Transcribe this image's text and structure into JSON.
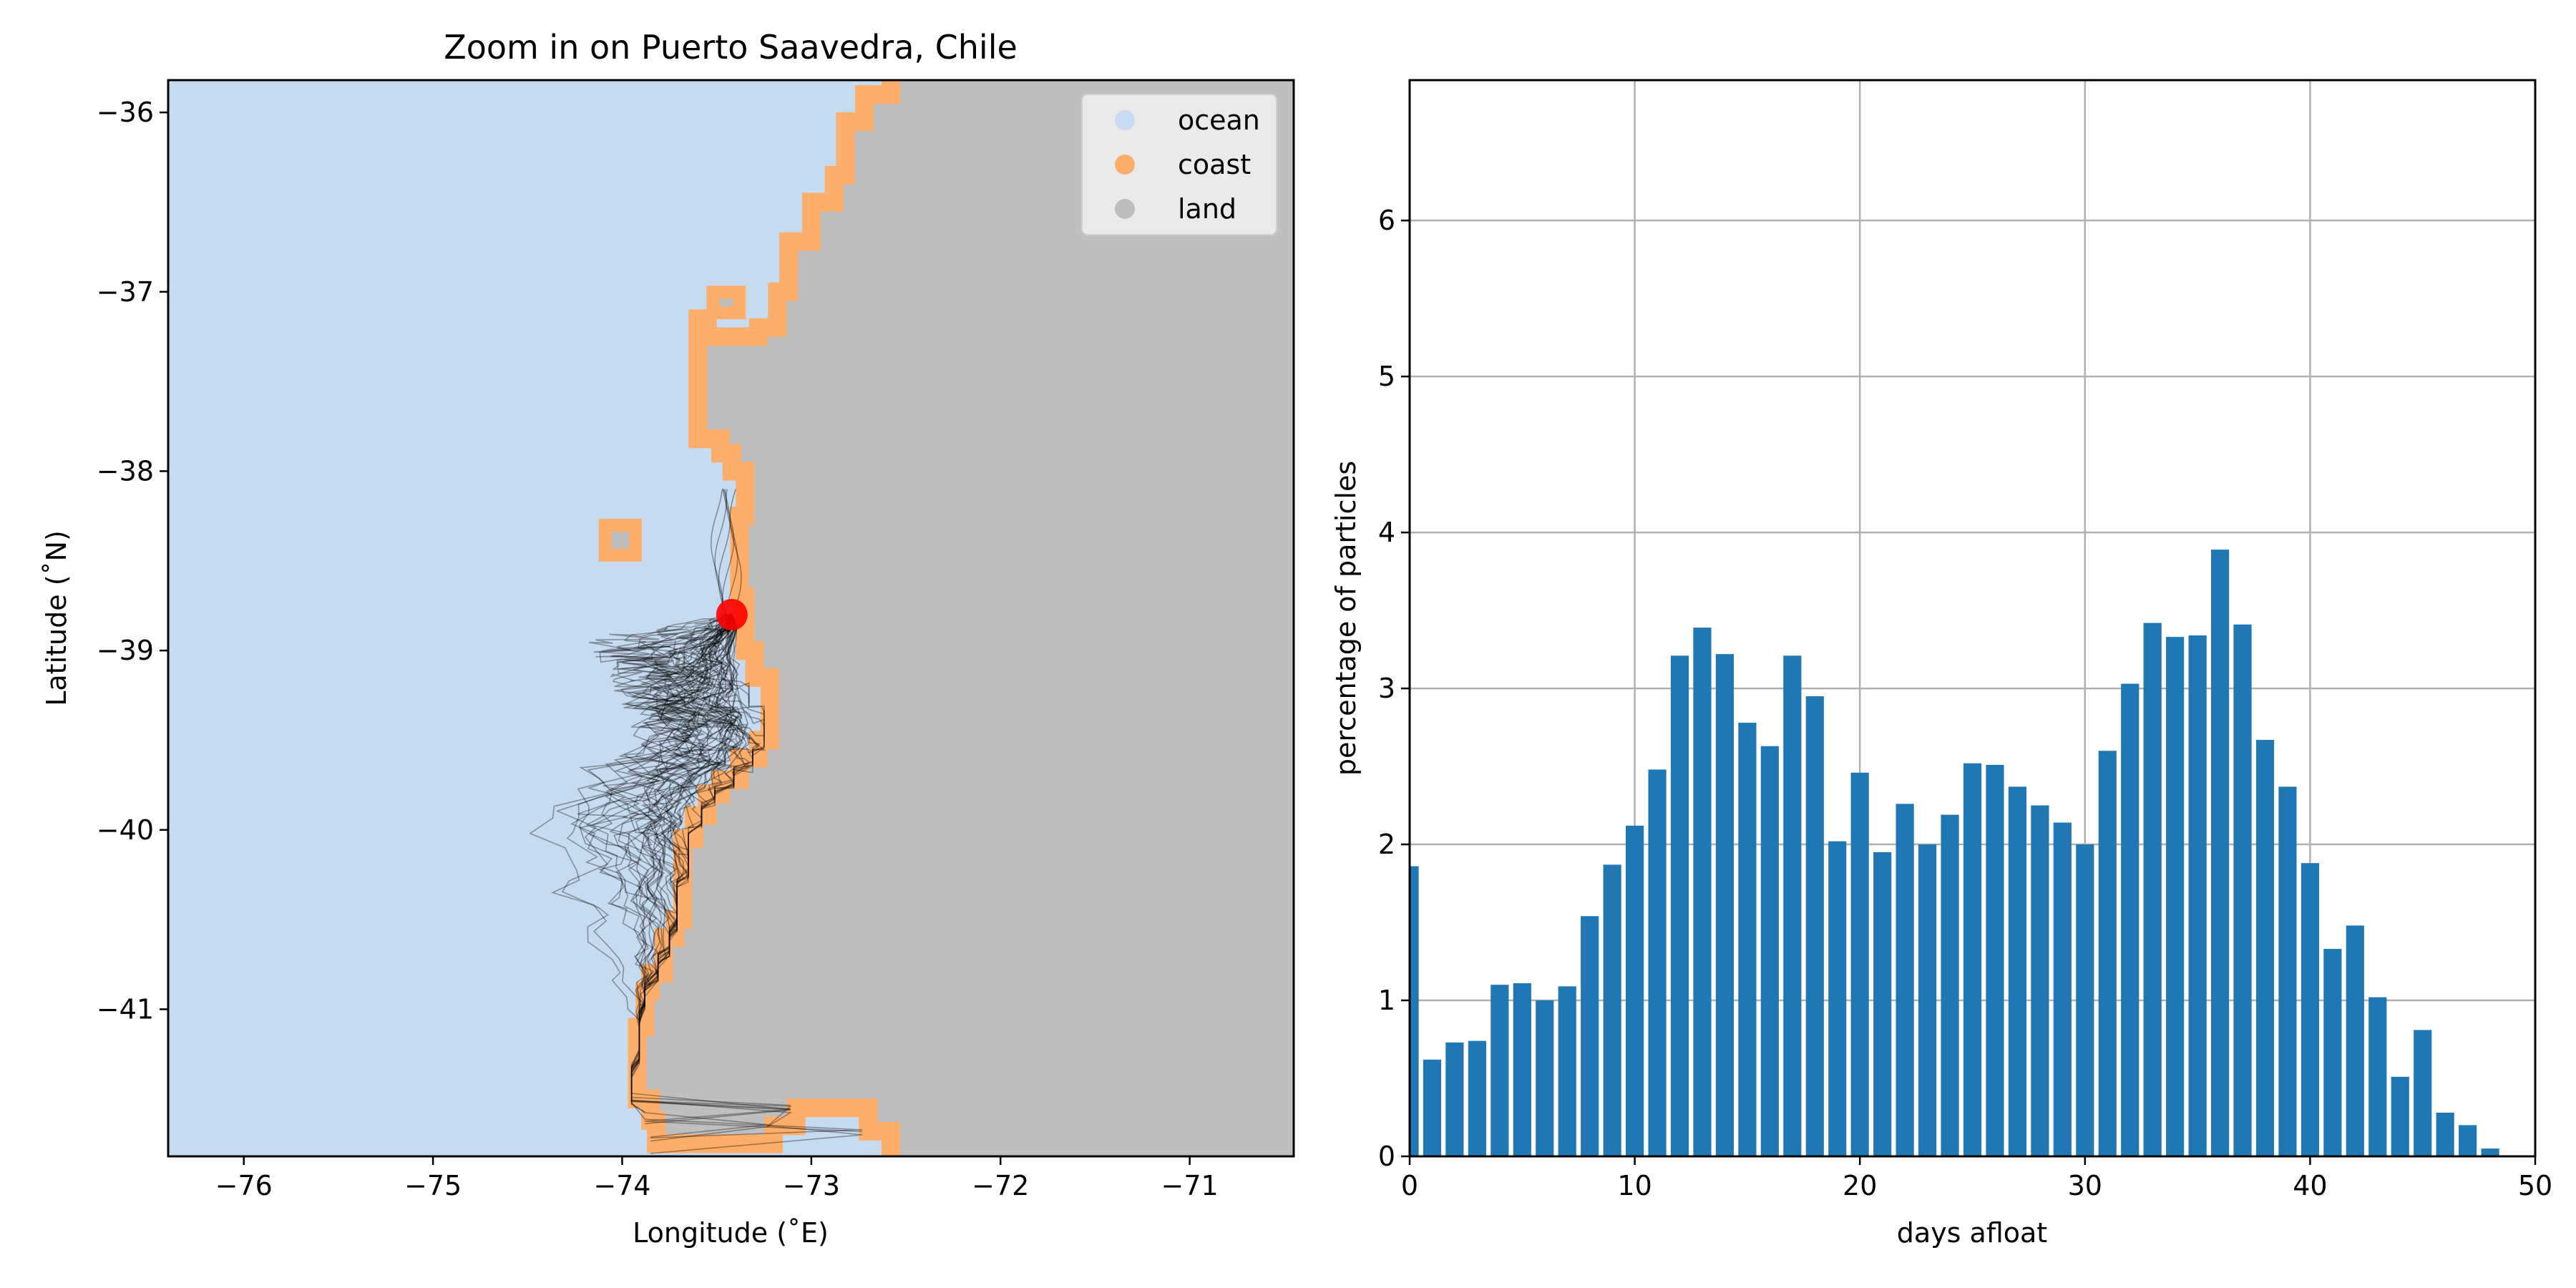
{
  "colors": {
    "ocean": "#c6dbef",
    "coast": "#fdae6b",
    "land": "#bdbdbd",
    "release": "#ff0000",
    "trajectory": "#000000",
    "bar": "#1f77b4",
    "grid": "#b0b0b0"
  },
  "chart_data": [
    {
      "type": "map",
      "title": "Zoom in on Puerto Saavedra, Chile",
      "xlabel": "Longitude (˚E)",
      "ylabel": "Latitude (˚N)",
      "xlim": [
        -76.4,
        -70.45
      ],
      "ylim": [
        -41.82,
        -35.82
      ],
      "xticks": [
        -76,
        -75,
        -74,
        -73,
        -72,
        -71
      ],
      "yticks": [
        -36,
        -37,
        -38,
        -39,
        -40,
        -41
      ],
      "xtick_labels": [
        "−76",
        "−75",
        "−74",
        "−73",
        "−72",
        "−71"
      ],
      "ytick_labels": [
        "−36",
        "−37",
        "−38",
        "−39",
        "−40",
        "−41"
      ],
      "legend": {
        "placement": "top-right",
        "entries": [
          {
            "label": "ocean",
            "color": "#c6dbef"
          },
          {
            "label": "coast",
            "color": "#fdae6b"
          },
          {
            "label": "land",
            "color": "#bdbdbd"
          }
        ]
      },
      "release_point": {
        "lon": -73.42,
        "lat": -38.8
      },
      "coastline": [
        [
          -72.58,
          -35.82
        ],
        [
          -72.58,
          -35.9
        ],
        [
          -72.72,
          -35.9
        ],
        [
          -72.72,
          -36.05
        ],
        [
          -72.82,
          -36.05
        ],
        [
          -72.82,
          -36.35
        ],
        [
          -72.88,
          -36.35
        ],
        [
          -72.88,
          -36.5
        ],
        [
          -73.0,
          -36.5
        ],
        [
          -73.0,
          -36.72
        ],
        [
          -73.12,
          -36.72
        ],
        [
          -73.12,
          -37.0
        ],
        [
          -73.18,
          -37.0
        ],
        [
          -73.18,
          -37.2
        ],
        [
          -73.28,
          -37.2
        ],
        [
          -73.28,
          -37.25
        ],
        [
          -73.55,
          -37.25
        ],
        [
          -73.55,
          -37.15
        ],
        [
          -73.6,
          -37.15
        ],
        [
          -73.6,
          -37.82
        ],
        [
          -73.48,
          -37.82
        ],
        [
          -73.48,
          -37.9
        ],
        [
          -73.42,
          -37.9
        ],
        [
          -73.42,
          -38.0
        ],
        [
          -73.35,
          -38.0
        ],
        [
          -73.35,
          -38.25
        ],
        [
          -73.38,
          -38.25
        ],
        [
          -73.38,
          -38.7
        ],
        [
          -73.35,
          -38.7
        ],
        [
          -73.35,
          -39.0
        ],
        [
          -73.3,
          -39.0
        ],
        [
          -73.3,
          -39.15
        ],
        [
          -73.22,
          -39.15
        ],
        [
          -73.22,
          -39.5
        ],
        [
          -73.28,
          -39.5
        ],
        [
          -73.28,
          -39.6
        ],
        [
          -73.38,
          -39.6
        ],
        [
          -73.38,
          -39.72
        ],
        [
          -73.48,
          -39.72
        ],
        [
          -73.48,
          -39.8
        ],
        [
          -73.55,
          -39.8
        ],
        [
          -73.55,
          -39.92
        ],
        [
          -73.62,
          -39.92
        ],
        [
          -73.62,
          -40.05
        ],
        [
          -73.68,
          -40.05
        ],
        [
          -73.68,
          -40.5
        ],
        [
          -73.72,
          -40.5
        ],
        [
          -73.72,
          -40.6
        ],
        [
          -73.78,
          -40.6
        ],
        [
          -73.78,
          -40.8
        ],
        [
          -73.85,
          -40.8
        ],
        [
          -73.85,
          -40.9
        ],
        [
          -73.88,
          -40.9
        ],
        [
          -73.88,
          -41.1
        ],
        [
          -73.92,
          -41.1
        ],
        [
          -73.92,
          -41.5
        ],
        [
          -73.85,
          -41.5
        ],
        [
          -73.85,
          -41.62
        ],
        [
          -73.82,
          -41.62
        ],
        [
          -73.82,
          -41.75
        ],
        [
          -73.2,
          -41.75
        ],
        [
          -73.2,
          -41.65
        ],
        [
          -73.08,
          -41.65
        ],
        [
          -73.08,
          -41.55
        ],
        [
          -72.7,
          -41.55
        ],
        [
          -72.7,
          -41.68
        ],
        [
          -72.58,
          -41.68
        ],
        [
          -72.58,
          -41.82
        ]
      ],
      "coastal_islands": [
        {
          "lon": [
            -73.55,
            -73.35
          ],
          "lat": [
            -37.15,
            -36.97
          ]
        },
        {
          "lon": [
            -74.12,
            -73.9
          ],
          "lat": [
            -38.5,
            -38.27
          ]
        }
      ]
    },
    {
      "type": "bar",
      "title": "",
      "xlabel": "days afloat",
      "ylabel": "percentage of particles",
      "xlim": [
        0,
        50
      ],
      "ylim": [
        0,
        6.9
      ],
      "xticks": [
        0,
        10,
        20,
        30,
        40,
        50
      ],
      "yticks": [
        0,
        1,
        2,
        3,
        4,
        5,
        6
      ],
      "grid": true,
      "bar_width": 0.8,
      "x": [
        0,
        1,
        2,
        3,
        4,
        5,
        6,
        7,
        8,
        9,
        10,
        11,
        12,
        13,
        14,
        15,
        16,
        17,
        18,
        19,
        20,
        21,
        22,
        23,
        24,
        25,
        26,
        27,
        28,
        29,
        30,
        31,
        32,
        33,
        34,
        35,
        36,
        37,
        38,
        39,
        40,
        41,
        42,
        43,
        44,
        45,
        46,
        47,
        48
      ],
      "values": [
        1.86,
        0.62,
        0.73,
        0.74,
        1.1,
        1.11,
        1.0,
        1.09,
        1.54,
        1.87,
        2.12,
        2.48,
        3.21,
        3.39,
        3.22,
        2.78,
        2.63,
        3.21,
        2.95,
        2.02,
        2.46,
        1.95,
        2.26,
        2.0,
        2.19,
        2.52,
        2.51,
        2.37,
        2.25,
        2.14,
        2.0,
        2.6,
        3.03,
        3.42,
        3.33,
        3.34,
        3.89,
        3.41,
        2.67,
        2.37,
        1.88,
        1.33,
        1.48,
        1.02,
        0.51,
        0.81,
        0.28,
        0.2,
        0.05
      ]
    }
  ]
}
